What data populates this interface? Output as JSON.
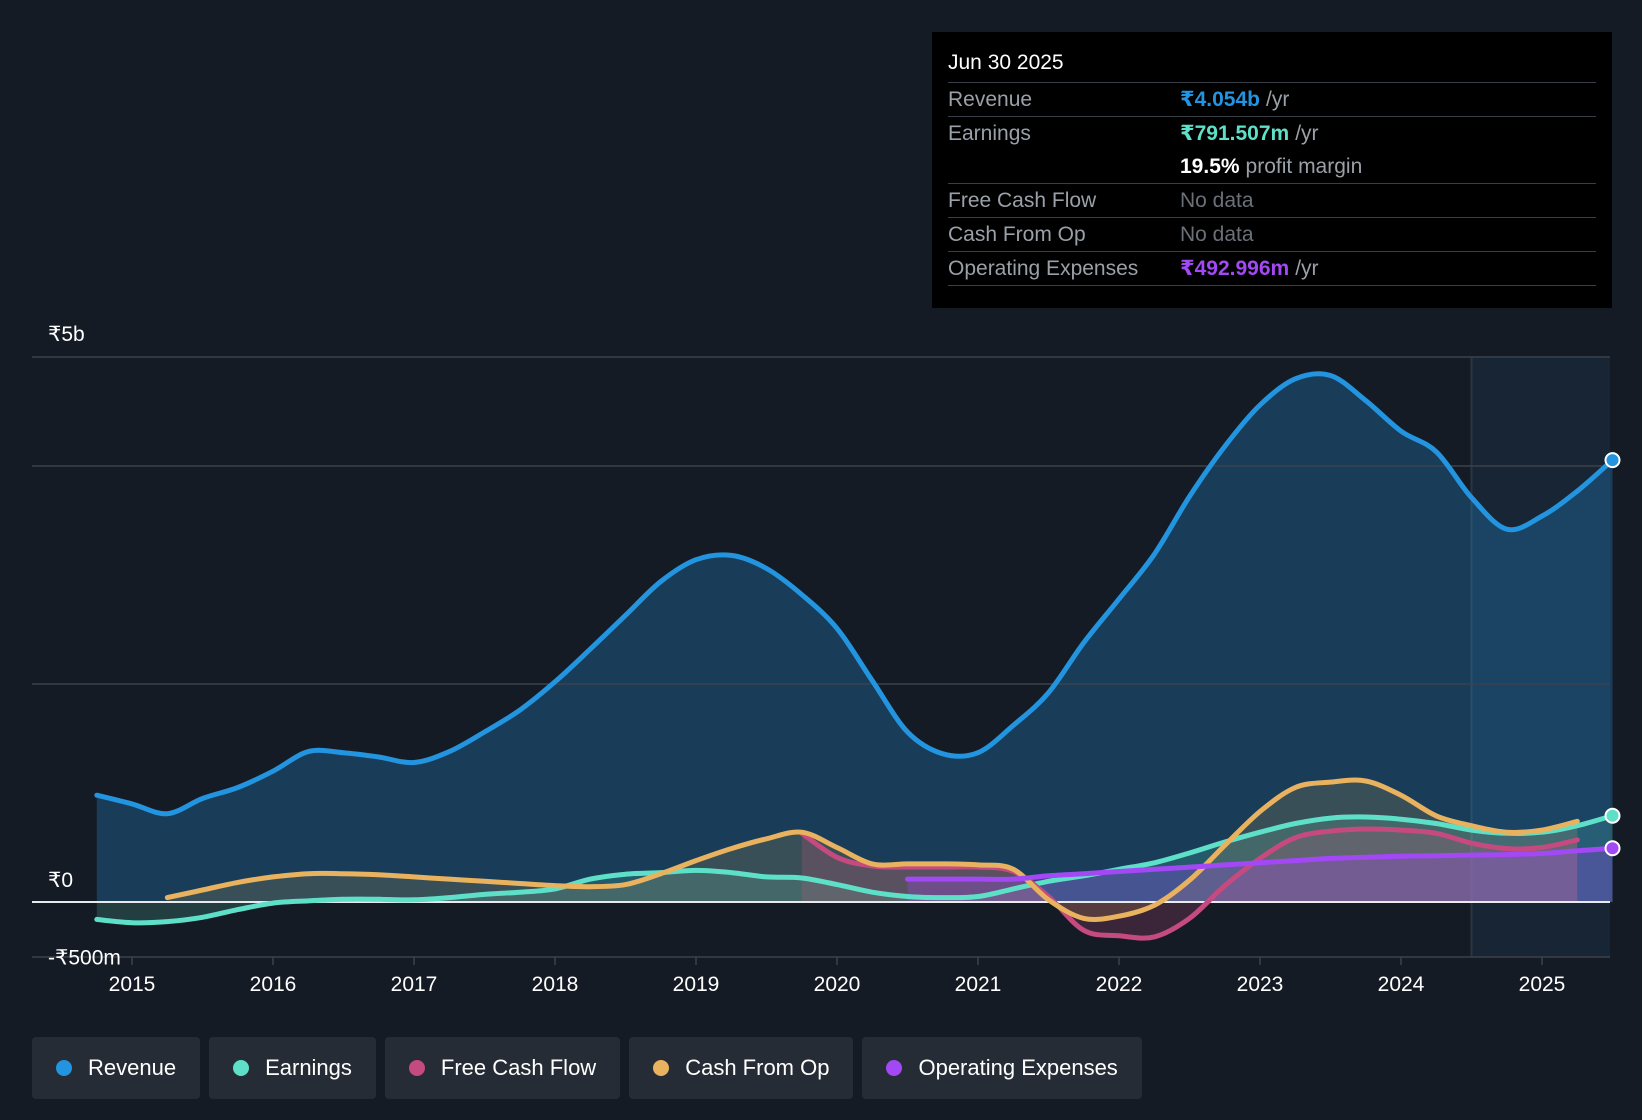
{
  "chart_data": {
    "type": "area",
    "currency_symbol": "₹",
    "y_axis_labels": [
      "₹5b",
      "₹0",
      "-₹500m"
    ],
    "y_axis_values": [
      5000,
      0,
      -500
    ],
    "ylim": [
      -500,
      5000
    ],
    "xlim": [
      2014.3,
      2025.5
    ],
    "x_ticks": [
      2015,
      2016,
      2017,
      2018,
      2019,
      2020,
      2021,
      2022,
      2023,
      2024,
      2025
    ],
    "gridlines": [
      5000,
      4000,
      2000,
      0
    ],
    "forecast_shade_start": 2024.5,
    "series": [
      {
        "name": "Revenue",
        "color": "#2394df",
        "fill": true,
        "end_marker": true,
        "points": [
          [
            2014.75,
            980
          ],
          [
            2015.0,
            900
          ],
          [
            2015.25,
            810
          ],
          [
            2015.5,
            950
          ],
          [
            2015.75,
            1050
          ],
          [
            2016.0,
            1200
          ],
          [
            2016.25,
            1380
          ],
          [
            2016.5,
            1370
          ],
          [
            2016.75,
            1330
          ],
          [
            2017.0,
            1280
          ],
          [
            2017.25,
            1380
          ],
          [
            2017.5,
            1560
          ],
          [
            2017.75,
            1760
          ],
          [
            2018.0,
            2020
          ],
          [
            2018.25,
            2320
          ],
          [
            2018.5,
            2630
          ],
          [
            2018.75,
            2940
          ],
          [
            2019.0,
            3140
          ],
          [
            2019.25,
            3180
          ],
          [
            2019.5,
            3060
          ],
          [
            2019.75,
            2820
          ],
          [
            2020.0,
            2510
          ],
          [
            2020.25,
            2030
          ],
          [
            2020.5,
            1560
          ],
          [
            2020.75,
            1360
          ],
          [
            2021.0,
            1370
          ],
          [
            2021.25,
            1620
          ],
          [
            2021.5,
            1920
          ],
          [
            2021.75,
            2380
          ],
          [
            2022.0,
            2780
          ],
          [
            2022.25,
            3190
          ],
          [
            2022.5,
            3720
          ],
          [
            2022.75,
            4180
          ],
          [
            2023.0,
            4560
          ],
          [
            2023.25,
            4800
          ],
          [
            2023.5,
            4830
          ],
          [
            2023.75,
            4600
          ],
          [
            2024.0,
            4320
          ],
          [
            2024.25,
            4130
          ],
          [
            2024.5,
            3710
          ],
          [
            2024.75,
            3420
          ],
          [
            2025.0,
            3540
          ],
          [
            2025.25,
            3770
          ],
          [
            2025.5,
            4054
          ]
        ]
      },
      {
        "name": "Earnings",
        "color": "#5ee0c8",
        "fill": true,
        "end_marker": true,
        "points": [
          [
            2014.75,
            -160
          ],
          [
            2015.0,
            -190
          ],
          [
            2015.25,
            -180
          ],
          [
            2015.5,
            -140
          ],
          [
            2015.75,
            -70
          ],
          [
            2016.0,
            -10
          ],
          [
            2016.25,
            10
          ],
          [
            2016.5,
            25
          ],
          [
            2016.75,
            25
          ],
          [
            2017.0,
            20
          ],
          [
            2017.25,
            40
          ],
          [
            2017.5,
            70
          ],
          [
            2017.75,
            90
          ],
          [
            2018.0,
            120
          ],
          [
            2018.25,
            210
          ],
          [
            2018.5,
            255
          ],
          [
            2018.75,
            270
          ],
          [
            2019.0,
            290
          ],
          [
            2019.25,
            270
          ],
          [
            2019.5,
            230
          ],
          [
            2019.75,
            220
          ],
          [
            2020.0,
            160
          ],
          [
            2020.25,
            90
          ],
          [
            2020.5,
            50
          ],
          [
            2020.75,
            40
          ],
          [
            2021.0,
            50
          ],
          [
            2021.25,
            120
          ],
          [
            2021.5,
            190
          ],
          [
            2021.75,
            240
          ],
          [
            2022.0,
            300
          ],
          [
            2022.25,
            360
          ],
          [
            2022.5,
            450
          ],
          [
            2022.75,
            550
          ],
          [
            2023.0,
            640
          ],
          [
            2023.25,
            720
          ],
          [
            2023.5,
            770
          ],
          [
            2023.75,
            780
          ],
          [
            2024.0,
            760
          ],
          [
            2024.25,
            720
          ],
          [
            2024.5,
            660
          ],
          [
            2024.75,
            630
          ],
          [
            2025.0,
            640
          ],
          [
            2025.25,
            700
          ],
          [
            2025.5,
            791.507
          ]
        ]
      },
      {
        "name": "Free Cash Flow",
        "color": "#c44a7f",
        "fill": true,
        "end_marker": false,
        "points": [
          [
            2019.75,
            630
          ],
          [
            2020.0,
            410
          ],
          [
            2020.25,
            330
          ],
          [
            2020.5,
            320
          ],
          [
            2020.75,
            320
          ],
          [
            2021.0,
            320
          ],
          [
            2021.25,
            280
          ],
          [
            2021.5,
            50
          ],
          [
            2021.75,
            -260
          ],
          [
            2022.0,
            -310
          ],
          [
            2022.25,
            -320
          ],
          [
            2022.5,
            -150
          ],
          [
            2022.75,
            150
          ],
          [
            2023.0,
            400
          ],
          [
            2023.25,
            590
          ],
          [
            2023.5,
            650
          ],
          [
            2023.75,
            670
          ],
          [
            2024.0,
            660
          ],
          [
            2024.25,
            630
          ],
          [
            2024.5,
            540
          ],
          [
            2024.75,
            490
          ],
          [
            2025.0,
            500
          ],
          [
            2025.25,
            570
          ]
        ]
      },
      {
        "name": "Cash From Op",
        "color": "#e8b25f",
        "fill": true,
        "end_marker": false,
        "points": [
          [
            2015.25,
            40
          ],
          [
            2015.5,
            110
          ],
          [
            2015.75,
            180
          ],
          [
            2016.0,
            230
          ],
          [
            2016.25,
            260
          ],
          [
            2016.5,
            260
          ],
          [
            2016.75,
            250
          ],
          [
            2017.0,
            230
          ],
          [
            2017.25,
            210
          ],
          [
            2017.5,
            190
          ],
          [
            2017.75,
            170
          ],
          [
            2018.0,
            150
          ],
          [
            2018.25,
            140
          ],
          [
            2018.5,
            160
          ],
          [
            2018.75,
            260
          ],
          [
            2019.0,
            380
          ],
          [
            2019.25,
            490
          ],
          [
            2019.5,
            580
          ],
          [
            2019.75,
            640
          ],
          [
            2020.0,
            500
          ],
          [
            2020.25,
            350
          ],
          [
            2020.5,
            350
          ],
          [
            2020.75,
            350
          ],
          [
            2021.0,
            340
          ],
          [
            2021.25,
            300
          ],
          [
            2021.5,
            20
          ],
          [
            2021.75,
            -150
          ],
          [
            2022.0,
            -130
          ],
          [
            2022.25,
            -30
          ],
          [
            2022.5,
            200
          ],
          [
            2022.75,
            520
          ],
          [
            2023.0,
            830
          ],
          [
            2023.25,
            1050
          ],
          [
            2023.5,
            1100
          ],
          [
            2023.75,
            1110
          ],
          [
            2024.0,
            980
          ],
          [
            2024.25,
            790
          ],
          [
            2024.5,
            700
          ],
          [
            2024.75,
            640
          ],
          [
            2025.0,
            660
          ],
          [
            2025.25,
            740
          ]
        ]
      },
      {
        "name": "Operating Expenses",
        "color": "#a248f5",
        "fill": true,
        "end_marker": true,
        "points": [
          [
            2020.5,
            210
          ],
          [
            2020.75,
            210
          ],
          [
            2021.0,
            210
          ],
          [
            2021.25,
            210
          ],
          [
            2021.5,
            240
          ],
          [
            2021.75,
            260
          ],
          [
            2022.0,
            280
          ],
          [
            2022.25,
            300
          ],
          [
            2022.5,
            320
          ],
          [
            2022.75,
            340
          ],
          [
            2023.0,
            360
          ],
          [
            2023.25,
            380
          ],
          [
            2023.5,
            400
          ],
          [
            2023.75,
            410
          ],
          [
            2024.0,
            420
          ],
          [
            2024.25,
            425
          ],
          [
            2024.5,
            430
          ],
          [
            2024.75,
            435
          ],
          [
            2025.0,
            445
          ],
          [
            2025.25,
            470
          ],
          [
            2025.5,
            492.996
          ]
        ]
      }
    ]
  },
  "tooltip": {
    "date": "Jun 30 2025",
    "rows": [
      {
        "label": "Revenue",
        "value": "₹4.054b",
        "unit": "/yr",
        "color": "#2394df"
      },
      {
        "label": "Earnings",
        "value": "₹791.507m",
        "unit": "/yr",
        "color": "#5ee0c8"
      },
      {
        "label": "",
        "value": "19.5%",
        "unit": "profit margin",
        "color": "#ffffff"
      },
      {
        "label": "Free Cash Flow",
        "value": "No data",
        "unit": "",
        "color": "#6b7078"
      },
      {
        "label": "Cash From Op",
        "value": "No data",
        "unit": "",
        "color": "#6b7078"
      },
      {
        "label": "Operating Expenses",
        "value": "₹492.996m",
        "unit": "/yr",
        "color": "#a248f5"
      }
    ]
  },
  "legend": [
    {
      "label": "Revenue",
      "color": "#2394df"
    },
    {
      "label": "Earnings",
      "color": "#5ee0c8"
    },
    {
      "label": "Free Cash Flow",
      "color": "#c44a7f"
    },
    {
      "label": "Cash From Op",
      "color": "#e8b25f"
    },
    {
      "label": "Operating Expenses",
      "color": "#a248f5"
    }
  ]
}
